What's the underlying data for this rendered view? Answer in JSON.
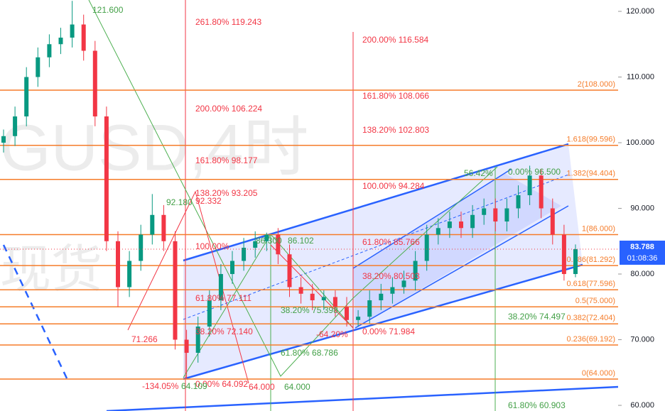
{
  "chart_data": {
    "type": "candlestick",
    "watermark": [
      "GUSD,4时",
      "现货"
    ],
    "ylim": [
      59.14,
      121.73
    ],
    "yticks": [
      {
        "value": 120,
        "label": "120.000"
      },
      {
        "value": 110,
        "label": "110.000"
      },
      {
        "value": 100,
        "label": "100.000"
      },
      {
        "value": 90,
        "label": "90.000"
      },
      {
        "value": 80,
        "label": "80.000"
      },
      {
        "value": 70,
        "label": "70.000"
      },
      {
        "value": 60,
        "label": "60.000"
      }
    ],
    "up_color": "#089981",
    "down_color": "#f23645",
    "open": [
      100,
      101,
      104,
      110,
      113,
      115,
      116,
      118,
      114,
      104,
      85,
      78,
      82,
      86,
      89,
      85,
      70,
      68,
      72,
      76,
      80,
      82,
      84,
      85,
      86,
      83,
      78,
      77,
      76,
      76.5,
      75,
      73,
      73.5,
      76,
      77,
      78,
      79,
      82,
      86,
      87,
      88,
      87,
      89,
      90,
      88,
      90,
      92,
      95,
      90,
      86,
      80
    ],
    "close": [
      101,
      104,
      110,
      113,
      115,
      116,
      118,
      114,
      104,
      85,
      78,
      82,
      86,
      89,
      85,
      70,
      68,
      72,
      76,
      80,
      82,
      84,
      85,
      86,
      83,
      78,
      77,
      76,
      76.5,
      75,
      73,
      73.5,
      76,
      77,
      78,
      79,
      82,
      86,
      87,
      88,
      87,
      89,
      90,
      88,
      90,
      92,
      95,
      90,
      86,
      80,
      83.788
    ],
    "high": [
      102,
      105.5,
      111.5,
      114.5,
      116.5,
      117.5,
      121.6,
      119.5,
      115.5,
      105.5,
      86.5,
      83.5,
      87.5,
      92.18,
      90.5,
      86.5,
      71.5,
      73.5,
      77.5,
      81.5,
      83.5,
      85.5,
      86.5,
      86.3,
      87,
      84.5,
      79.5,
      78.5,
      77.5,
      77.5,
      76.5,
      74.5,
      77.5,
      78.5,
      79.5,
      80.5,
      83.5,
      87.5,
      88.5,
      89.5,
      89.5,
      90.5,
      91.5,
      91.5,
      91.5,
      93.5,
      96.5,
      96,
      91.5,
      87.5,
      84.5
    ],
    "low": [
      98.5,
      99.5,
      102.5,
      108.5,
      111.5,
      113.5,
      114.5,
      112.5,
      102.5,
      83.5,
      75,
      76.5,
      80.5,
      84.5,
      83.5,
      68.5,
      64.1,
      66.5,
      70.5,
      74.5,
      78.5,
      80.5,
      82.5,
      83.5,
      81.5,
      76.5,
      75.5,
      74.5,
      74.5,
      73.5,
      72,
      71.98,
      72.5,
      74.5,
      75.5,
      77,
      77.5,
      80.5,
      84.5,
      85.5,
      85.5,
      85.5,
      87.5,
      86.5,
      86.5,
      88.5,
      90.5,
      88.5,
      84.5,
      79,
      79.5
    ],
    "fib_levels": [
      {
        "label": "2(108.000)",
        "value": 108
      },
      {
        "label": "1.618(99.596)",
        "value": 99.596
      },
      {
        "label": "1.382(94.404)",
        "value": 94.404
      },
      {
        "label": "1(86.000)",
        "value": 86
      },
      {
        "label": "0.786(81.292)",
        "value": 81.292
      },
      {
        "label": "0.618(77.596)",
        "value": 77.596
      },
      {
        "label": "0.5(75.000)",
        "value": 75
      },
      {
        "label": "0.382(72.404)",
        "value": 72.404
      },
      {
        "label": "0.236(69.192)",
        "value": 69.192
      },
      {
        "label": "0(64.000)",
        "value": 64
      }
    ],
    "fib_color": "#f57c2a",
    "red_labels": [
      "261.80% 119.243",
      "200.00% 106.224",
      "161.80% 98.177",
      "138.20% 93.205",
      "92.332",
      "100.00%",
      "61.80% 77.111",
      "38.20% 72.140",
      "0.00% 64.092",
      "64.000",
      "200.00% 116.584",
      "161.80% 108.066",
      "138.20% 102.803",
      "100.00% 94.284",
      "61.80% 85.766",
      "38.20% 80.503",
      "0.00% 71.984",
      "-64.20%",
      "71.266",
      "-134.05%"
    ],
    "green_labels": [
      "121.600",
      "92.180",
      "86.102",
      "86.300",
      "38.20% 75.398",
      "61.80% 68.786",
      "64.109",
      "64.000",
      "56.42%",
      "0.00% 96.500",
      "38.20% 74.497",
      "61.80% 60.903"
    ],
    "last_price": {
      "value": 83.788,
      "label": "83.788",
      "countdown": "01:08:36"
    }
  }
}
